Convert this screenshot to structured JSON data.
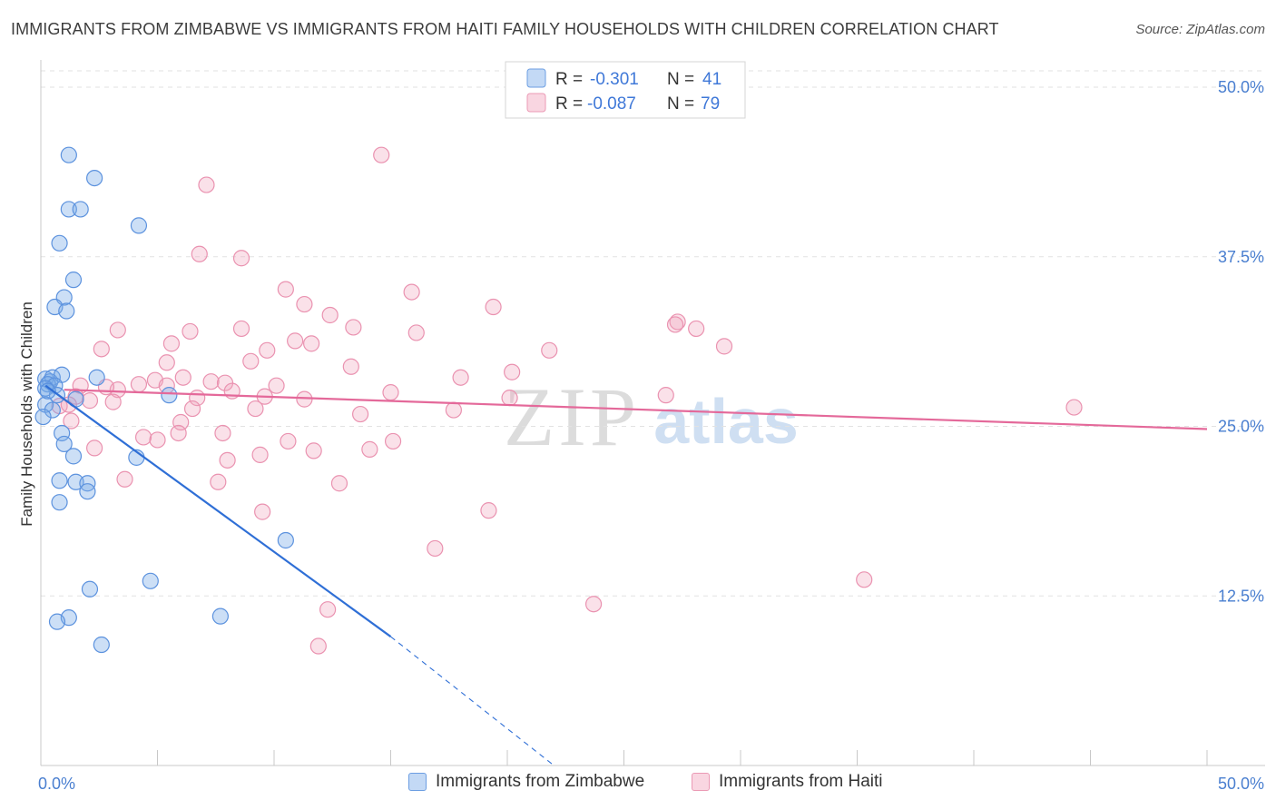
{
  "header": {
    "title": "IMMIGRANTS FROM ZIMBABWE VS IMMIGRANTS FROM HAITI FAMILY HOUSEHOLDS WITH CHILDREN CORRELATION CHART",
    "source": "Source: ZipAtlas.com"
  },
  "watermark": {
    "zip": "ZIP",
    "atlas": "atlas"
  },
  "chart_data": {
    "type": "scatter",
    "title": "IMMIGRANTS FROM ZIMBABWE VS IMMIGRANTS FROM HAITI FAMILY HOUSEHOLDS WITH CHILDREN CORRELATION CHART",
    "xlabel": "",
    "ylabel": "Family Households with Children",
    "xlim": [
      0,
      50
    ],
    "ylim": [
      0,
      50
    ],
    "x_tick_labels": [
      "0.0%",
      "50.0%"
    ],
    "y_ticks": [
      12.5,
      25.0,
      37.5,
      50.0
    ],
    "y_tick_labels": [
      "12.5%",
      "25.0%",
      "37.5%",
      "50.0%"
    ],
    "grid": true,
    "legend_position": "top-center",
    "series": [
      {
        "name": "Immigrants from Zimbabwe",
        "color": "#7aaae8",
        "line_color": "#2f6fd6",
        "R": "-0.301",
        "N": "41",
        "trend": {
          "x0": 0.2,
          "y0": 28.0,
          "x1": 15.0,
          "y1": 9.5,
          "dash_to_x": 22.0,
          "dash_to_y": 0.0
        },
        "points": [
          [
            1.2,
            45.0
          ],
          [
            2.3,
            43.3
          ],
          [
            1.2,
            41.0
          ],
          [
            1.7,
            41.0
          ],
          [
            4.2,
            39.8
          ],
          [
            0.8,
            38.5
          ],
          [
            1.4,
            35.8
          ],
          [
            1.0,
            34.5
          ],
          [
            0.6,
            33.8
          ],
          [
            1.1,
            33.5
          ],
          [
            0.2,
            28.5
          ],
          [
            0.4,
            28.3
          ],
          [
            0.5,
            28.6
          ],
          [
            0.9,
            28.8
          ],
          [
            2.4,
            28.6
          ],
          [
            0.3,
            28.1
          ],
          [
            0.6,
            28.0
          ],
          [
            0.2,
            27.8
          ],
          [
            0.7,
            27.3
          ],
          [
            1.5,
            27.0
          ],
          [
            5.5,
            27.3
          ],
          [
            0.2,
            26.6
          ],
          [
            0.5,
            26.2
          ],
          [
            0.1,
            25.7
          ],
          [
            0.9,
            24.5
          ],
          [
            1.0,
            23.7
          ],
          [
            1.4,
            22.8
          ],
          [
            4.1,
            22.7
          ],
          [
            0.8,
            21.0
          ],
          [
            1.5,
            20.9
          ],
          [
            2.0,
            20.8
          ],
          [
            2.0,
            20.2
          ],
          [
            0.8,
            19.4
          ],
          [
            10.5,
            16.6
          ],
          [
            4.7,
            13.6
          ],
          [
            2.1,
            13.0
          ],
          [
            1.2,
            10.9
          ],
          [
            0.7,
            10.6
          ],
          [
            7.7,
            11.0
          ],
          [
            2.6,
            8.9
          ],
          [
            0.3,
            27.6
          ]
        ]
      },
      {
        "name": "Immigrants from Haiti",
        "color": "#f1a3bc",
        "line_color": "#e4699a",
        "R": "-0.087",
        "N": "79",
        "trend": {
          "x0": 1.0,
          "y0": 27.7,
          "x1": 50.0,
          "y1": 24.8
        },
        "points": [
          [
            14.6,
            45.0
          ],
          [
            7.1,
            42.8
          ],
          [
            6.8,
            37.7
          ],
          [
            8.6,
            37.4
          ],
          [
            10.5,
            35.1
          ],
          [
            15.9,
            34.9
          ],
          [
            11.3,
            34.0
          ],
          [
            19.4,
            33.8
          ],
          [
            12.4,
            33.2
          ],
          [
            27.3,
            32.7
          ],
          [
            13.4,
            32.3
          ],
          [
            3.3,
            32.1
          ],
          [
            8.6,
            32.2
          ],
          [
            6.4,
            32.0
          ],
          [
            16.1,
            31.9
          ],
          [
            28.1,
            32.2
          ],
          [
            10.9,
            31.3
          ],
          [
            11.6,
            31.1
          ],
          [
            5.6,
            31.1
          ],
          [
            2.6,
            30.7
          ],
          [
            9.7,
            30.6
          ],
          [
            21.8,
            30.6
          ],
          [
            29.3,
            30.9
          ],
          [
            9.0,
            29.8
          ],
          [
            5.4,
            29.7
          ],
          [
            13.3,
            29.4
          ],
          [
            20.2,
            29.0
          ],
          [
            6.1,
            28.6
          ],
          [
            7.3,
            28.3
          ],
          [
            4.2,
            28.1
          ],
          [
            4.9,
            28.4
          ],
          [
            5.4,
            28.0
          ],
          [
            3.3,
            27.7
          ],
          [
            1.7,
            28.0
          ],
          [
            7.9,
            28.2
          ],
          [
            10.1,
            28.0
          ],
          [
            2.8,
            27.9
          ],
          [
            1.5,
            27.2
          ],
          [
            6.7,
            27.1
          ],
          [
            9.6,
            27.2
          ],
          [
            11.3,
            27.0
          ],
          [
            2.1,
            26.9
          ],
          [
            3.1,
            26.8
          ],
          [
            20.1,
            27.1
          ],
          [
            0.8,
            26.5
          ],
          [
            1.2,
            26.6
          ],
          [
            6.5,
            26.3
          ],
          [
            9.2,
            26.3
          ],
          [
            17.7,
            26.2
          ],
          [
            13.7,
            25.9
          ],
          [
            1.3,
            25.4
          ],
          [
            6.0,
            25.3
          ],
          [
            5.9,
            24.5
          ],
          [
            7.8,
            24.5
          ],
          [
            4.4,
            24.2
          ],
          [
            5.0,
            24.0
          ],
          [
            10.6,
            23.9
          ],
          [
            15.1,
            23.9
          ],
          [
            2.3,
            23.4
          ],
          [
            11.7,
            23.2
          ],
          [
            14.1,
            23.3
          ],
          [
            9.4,
            22.9
          ],
          [
            8.0,
            22.5
          ],
          [
            3.6,
            21.1
          ],
          [
            7.6,
            20.9
          ],
          [
            12.8,
            20.8
          ],
          [
            9.5,
            18.7
          ],
          [
            19.2,
            18.8
          ],
          [
            16.9,
            16.0
          ],
          [
            35.3,
            13.7
          ],
          [
            23.7,
            11.9
          ],
          [
            12.3,
            11.5
          ],
          [
            11.9,
            8.8
          ],
          [
            27.2,
            32.5
          ],
          [
            26.8,
            27.3
          ],
          [
            44.3,
            26.4
          ],
          [
            15.0,
            27.5
          ],
          [
            8.2,
            27.6
          ],
          [
            18.0,
            28.6
          ]
        ]
      }
    ]
  }
}
